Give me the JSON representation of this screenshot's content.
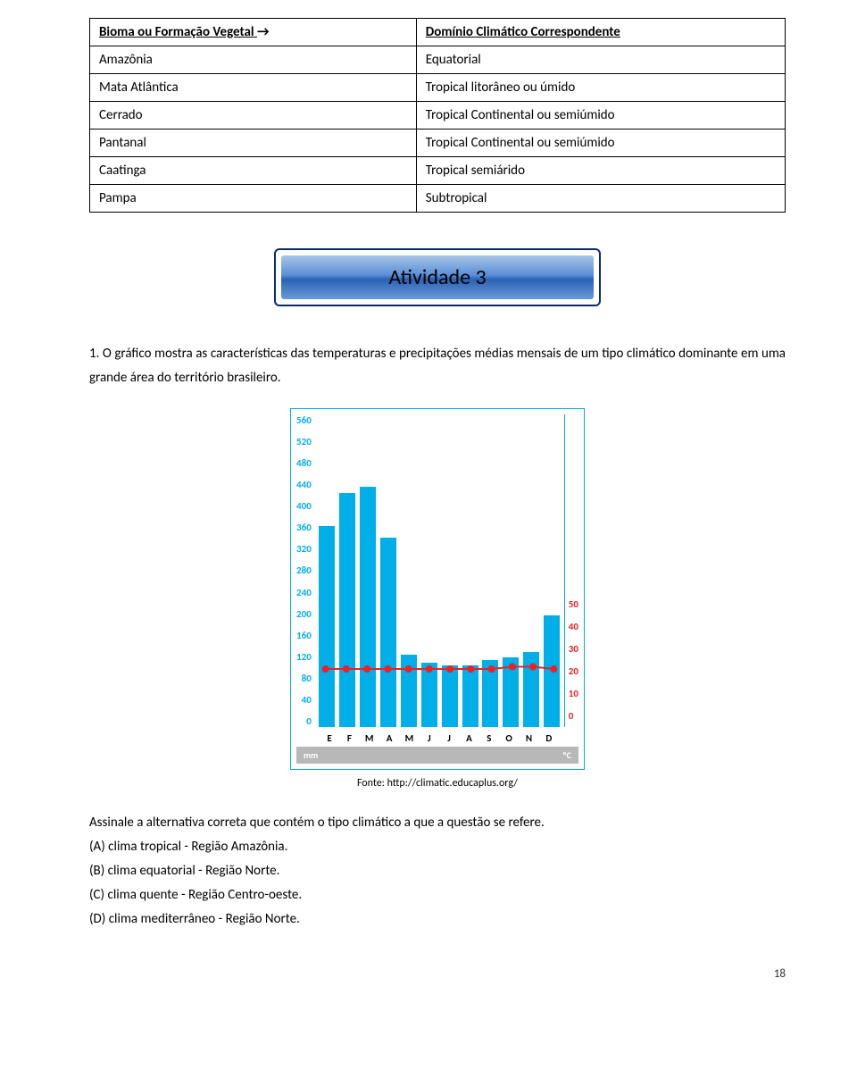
{
  "table": {
    "header_left": "Bioma ou Formação Vegetal",
    "header_arrow": "→",
    "header_right": "Domínio Climático Correspondente",
    "rows": [
      {
        "l": "Amazônia",
        "r": "Equatorial"
      },
      {
        "l": "Mata Atlântica",
        "r": "Tropical litorâneo ou úmido"
      },
      {
        "l": "Cerrado",
        "r": "Tropical Continental ou semiúmido"
      },
      {
        "l": "Pantanal",
        "r": "Tropical Continental ou semiúmido"
      },
      {
        "l": "Caatinga",
        "r": "Tropical semiárido"
      },
      {
        "l": "Pampa",
        "r": "Subtropical"
      }
    ]
  },
  "activity_title": "Atividade 3",
  "question_text": "1. O gráfico mostra as características das temperaturas e precipitações médias mensais de um tipo climático dominante em uma grande área do território brasileiro.",
  "chart": {
    "type": "bar+line",
    "months": [
      "E",
      "F",
      "M",
      "A",
      "M",
      "J",
      "J",
      "A",
      "S",
      "O",
      "N",
      "D"
    ],
    "precip_mm": [
      360,
      420,
      430,
      340,
      130,
      115,
      110,
      110,
      120,
      125,
      135,
      200
    ],
    "temp_c": [
      26,
      26,
      26,
      26,
      26,
      26,
      26,
      26,
      26,
      27,
      27,
      26
    ],
    "y_left_ticks": [
      560,
      520,
      480,
      440,
      400,
      360,
      320,
      280,
      240,
      200,
      160,
      120,
      80,
      40,
      0
    ],
    "y_left_max": 560,
    "y_right_ticks": [
      50,
      40,
      30,
      20,
      10,
      0
    ],
    "y_right_max": 140,
    "bar_color": "#00aee8",
    "line_color": "#ed2024",
    "marker_color": "#ed2024",
    "background_color": "#ffffff",
    "unit_left": "mm",
    "unit_right": "ºC"
  },
  "fonte_label": "Fonte: http://climatic.educaplus.org/",
  "answers_intro": "Assinale a alternativa correta que contém o tipo climático a que a questão se refere.",
  "answers": {
    "a": "(A) clima tropical - Região Amazônia.",
    "b": "(B) clima equatorial - Região Norte.",
    "c": "(C) clima quente - Região Centro-oeste.",
    "d": "(D) clima mediterrâneo - Região Norte."
  },
  "page_number": "18"
}
